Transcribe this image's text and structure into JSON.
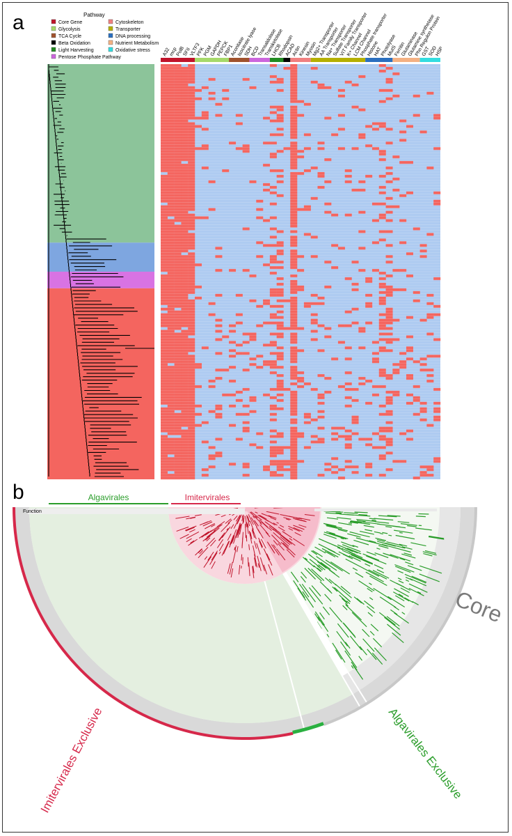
{
  "panels": {
    "a": {
      "letter": "a"
    },
    "b": {
      "letter": "b"
    }
  },
  "legend": {
    "title": "Pathway",
    "items": [
      {
        "label": "Core Gene",
        "color": "#c0142b"
      },
      {
        "label": "Glycolysis",
        "color": "#a6d96a"
      },
      {
        "label": "TCA Cycle",
        "color": "#a0522d"
      },
      {
        "label": "Beta Oxidation",
        "color": "#000000"
      },
      {
        "label": "Light Harvesting",
        "color": "#228b22"
      },
      {
        "label": "Pentose Phosphate Pathway",
        "color": "#cc66dd"
      },
      {
        "label": "Cytoskeleton",
        "color": "#f08080"
      },
      {
        "label": "Transporter",
        "color": "#b5b000"
      },
      {
        "label": "DNA processing",
        "color": "#2a6fbf"
      },
      {
        "label": "Nutrient Metabolism",
        "color": "#f4b183"
      },
      {
        "label": "Oxidative stress",
        "color": "#33dde0"
      }
    ]
  },
  "heatmap": {
    "columns": [
      "A32",
      "mcp",
      "PolB",
      "SFII",
      "VLTF3",
      "PFK",
      "PGM",
      "GAPDH",
      "PEPCK",
      "FBP1",
      "Aconitase",
      "Isocitrate lyase",
      "SDH",
      "BCD",
      "Transaldolase",
      "Transketolase",
      "LHCB",
      "Rhodopsin",
      "ACAD",
      "Actin",
      "Kinesin",
      "Myosin",
      "Mg2+ Transporter",
      "AA Transporter",
      "Na+ Transporter",
      "Sulfate Transporter",
      "VIT Family Transporter",
      "K+ Channel",
      "LCM Channel",
      "Phosphate transporter",
      "Histone",
      "HAT",
      "Photolyase",
      "MutS",
      "Ferritin",
      "Glutaminase",
      "Glutamine synthetase",
      "Phn Regulon Protein",
      "GST",
      "SOD",
      "HSP"
    ],
    "pathway_groups": [
      {
        "pathway": "Core Gene",
        "count": 5
      },
      {
        "pathway": "Glycolysis",
        "count": 5
      },
      {
        "pathway": "TCA Cycle",
        "count": 3
      },
      {
        "pathway": "Pentose Phosphate Pathway",
        "count": 3
      },
      {
        "pathway": "Light Harvesting",
        "count": 2
      },
      {
        "pathway": "Beta Oxidation",
        "count": 1
      },
      {
        "pathway": "Cytoskeleton",
        "count": 3
      },
      {
        "pathway": "Transporter",
        "count": 8
      },
      {
        "pathway": "DNA processing",
        "count": 4
      },
      {
        "pathway": "Nutrient Metabolism",
        "count": 4
      },
      {
        "pathway": "Oxidative stress",
        "count": 3
      }
    ],
    "present_color": "#f4655f",
    "absent_color": "#aecbf1"
  },
  "clades": [
    {
      "color": "#8cc49a",
      "fraction": 0.43
    },
    {
      "color": "#7ea6e0",
      "fraction": 0.07
    },
    {
      "color": "#d873e3",
      "fraction": 0.04
    },
    {
      "color": "#f4655f",
      "fraction": 0.46
    }
  ],
  "panel_b": {
    "algavirales_label": "Algavirales",
    "imitervirales_label": "Imitervirales",
    "function_label": "Function",
    "core_label": "Core",
    "algavirales_exclusive_label": "Algavirales Exclusive",
    "imitervirales_exclusive_label": "Imitervirales Exclusive",
    "colors": {
      "algavirales": "#2a9d2a",
      "imitervirales": "#d6284a",
      "core": "#b0b0b0"
    }
  }
}
